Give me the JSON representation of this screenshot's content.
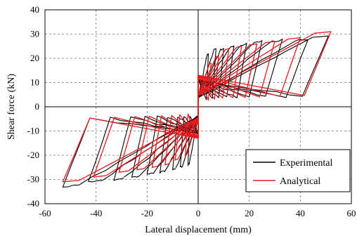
{
  "chart_data": {
    "type": "line",
    "title": "",
    "xlabel": "Lateral displacement (mm)",
    "ylabel": "Shear force (kN)",
    "xlim": [
      -60,
      60
    ],
    "ylim": [
      -40,
      40
    ],
    "xticks": [
      -60,
      -40,
      -20,
      0,
      20,
      40,
      60
    ],
    "yticks": [
      -40,
      -30,
      -20,
      -10,
      0,
      10,
      20,
      30,
      40
    ],
    "grid": true,
    "legend_position": "bottom-right",
    "series": [
      {
        "name": "Experimental",
        "color": "#000000",
        "loops": [
          {
            "amp_pos": 4,
            "amp_neg": -4,
            "peak_pos": 22,
            "peak_neg": -24
          },
          {
            "amp_pos": 7,
            "amp_neg": -7,
            "peak_pos": 24,
            "peak_neg": -25
          },
          {
            "amp_pos": 10,
            "amp_neg": -10,
            "peak_pos": 24,
            "peak_neg": -26
          },
          {
            "amp_pos": 14,
            "amp_neg": -15,
            "peak_pos": 25,
            "peak_neg": -27
          },
          {
            "amp_pos": 19,
            "amp_neg": -20,
            "peak_pos": 26,
            "peak_neg": -28
          },
          {
            "amp_pos": 25,
            "amp_neg": -26,
            "peak_pos": 27,
            "peak_neg": -29
          },
          {
            "amp_pos": 33,
            "amp_neg": -33,
            "peak_pos": 27.5,
            "peak_neg": -30
          },
          {
            "amp_pos": 43,
            "amp_neg": -43,
            "peak_pos": 28,
            "peak_neg": -31
          },
          {
            "amp_pos": 51,
            "amp_neg": -53,
            "peak_pos": 29.5,
            "peak_neg": -33
          }
        ]
      },
      {
        "name": "Analytical",
        "color": "#e8191c",
        "loops": [
          {
            "amp_pos": 5,
            "amp_neg": -5,
            "peak_pos": 18,
            "peak_neg": -20
          },
          {
            "amp_pos": 8,
            "amp_neg": -9,
            "peak_pos": 21,
            "peak_neg": -22
          },
          {
            "amp_pos": 12,
            "amp_neg": -13,
            "peak_pos": 24,
            "peak_neg": -24
          },
          {
            "amp_pos": 17,
            "amp_neg": -18,
            "peak_pos": 25,
            "peak_neg": -25
          },
          {
            "amp_pos": 23,
            "amp_neg": -24,
            "peak_pos": 26,
            "peak_neg": -26
          },
          {
            "amp_pos": 30,
            "amp_neg": -31,
            "peak_pos": 27,
            "peak_neg": -27
          },
          {
            "amp_pos": 40,
            "amp_neg": -41,
            "peak_pos": 28.5,
            "peak_neg": -29
          },
          {
            "amp_pos": 52,
            "amp_neg": -53,
            "peak_pos": 31,
            "peak_neg": -31
          }
        ]
      }
    ]
  }
}
